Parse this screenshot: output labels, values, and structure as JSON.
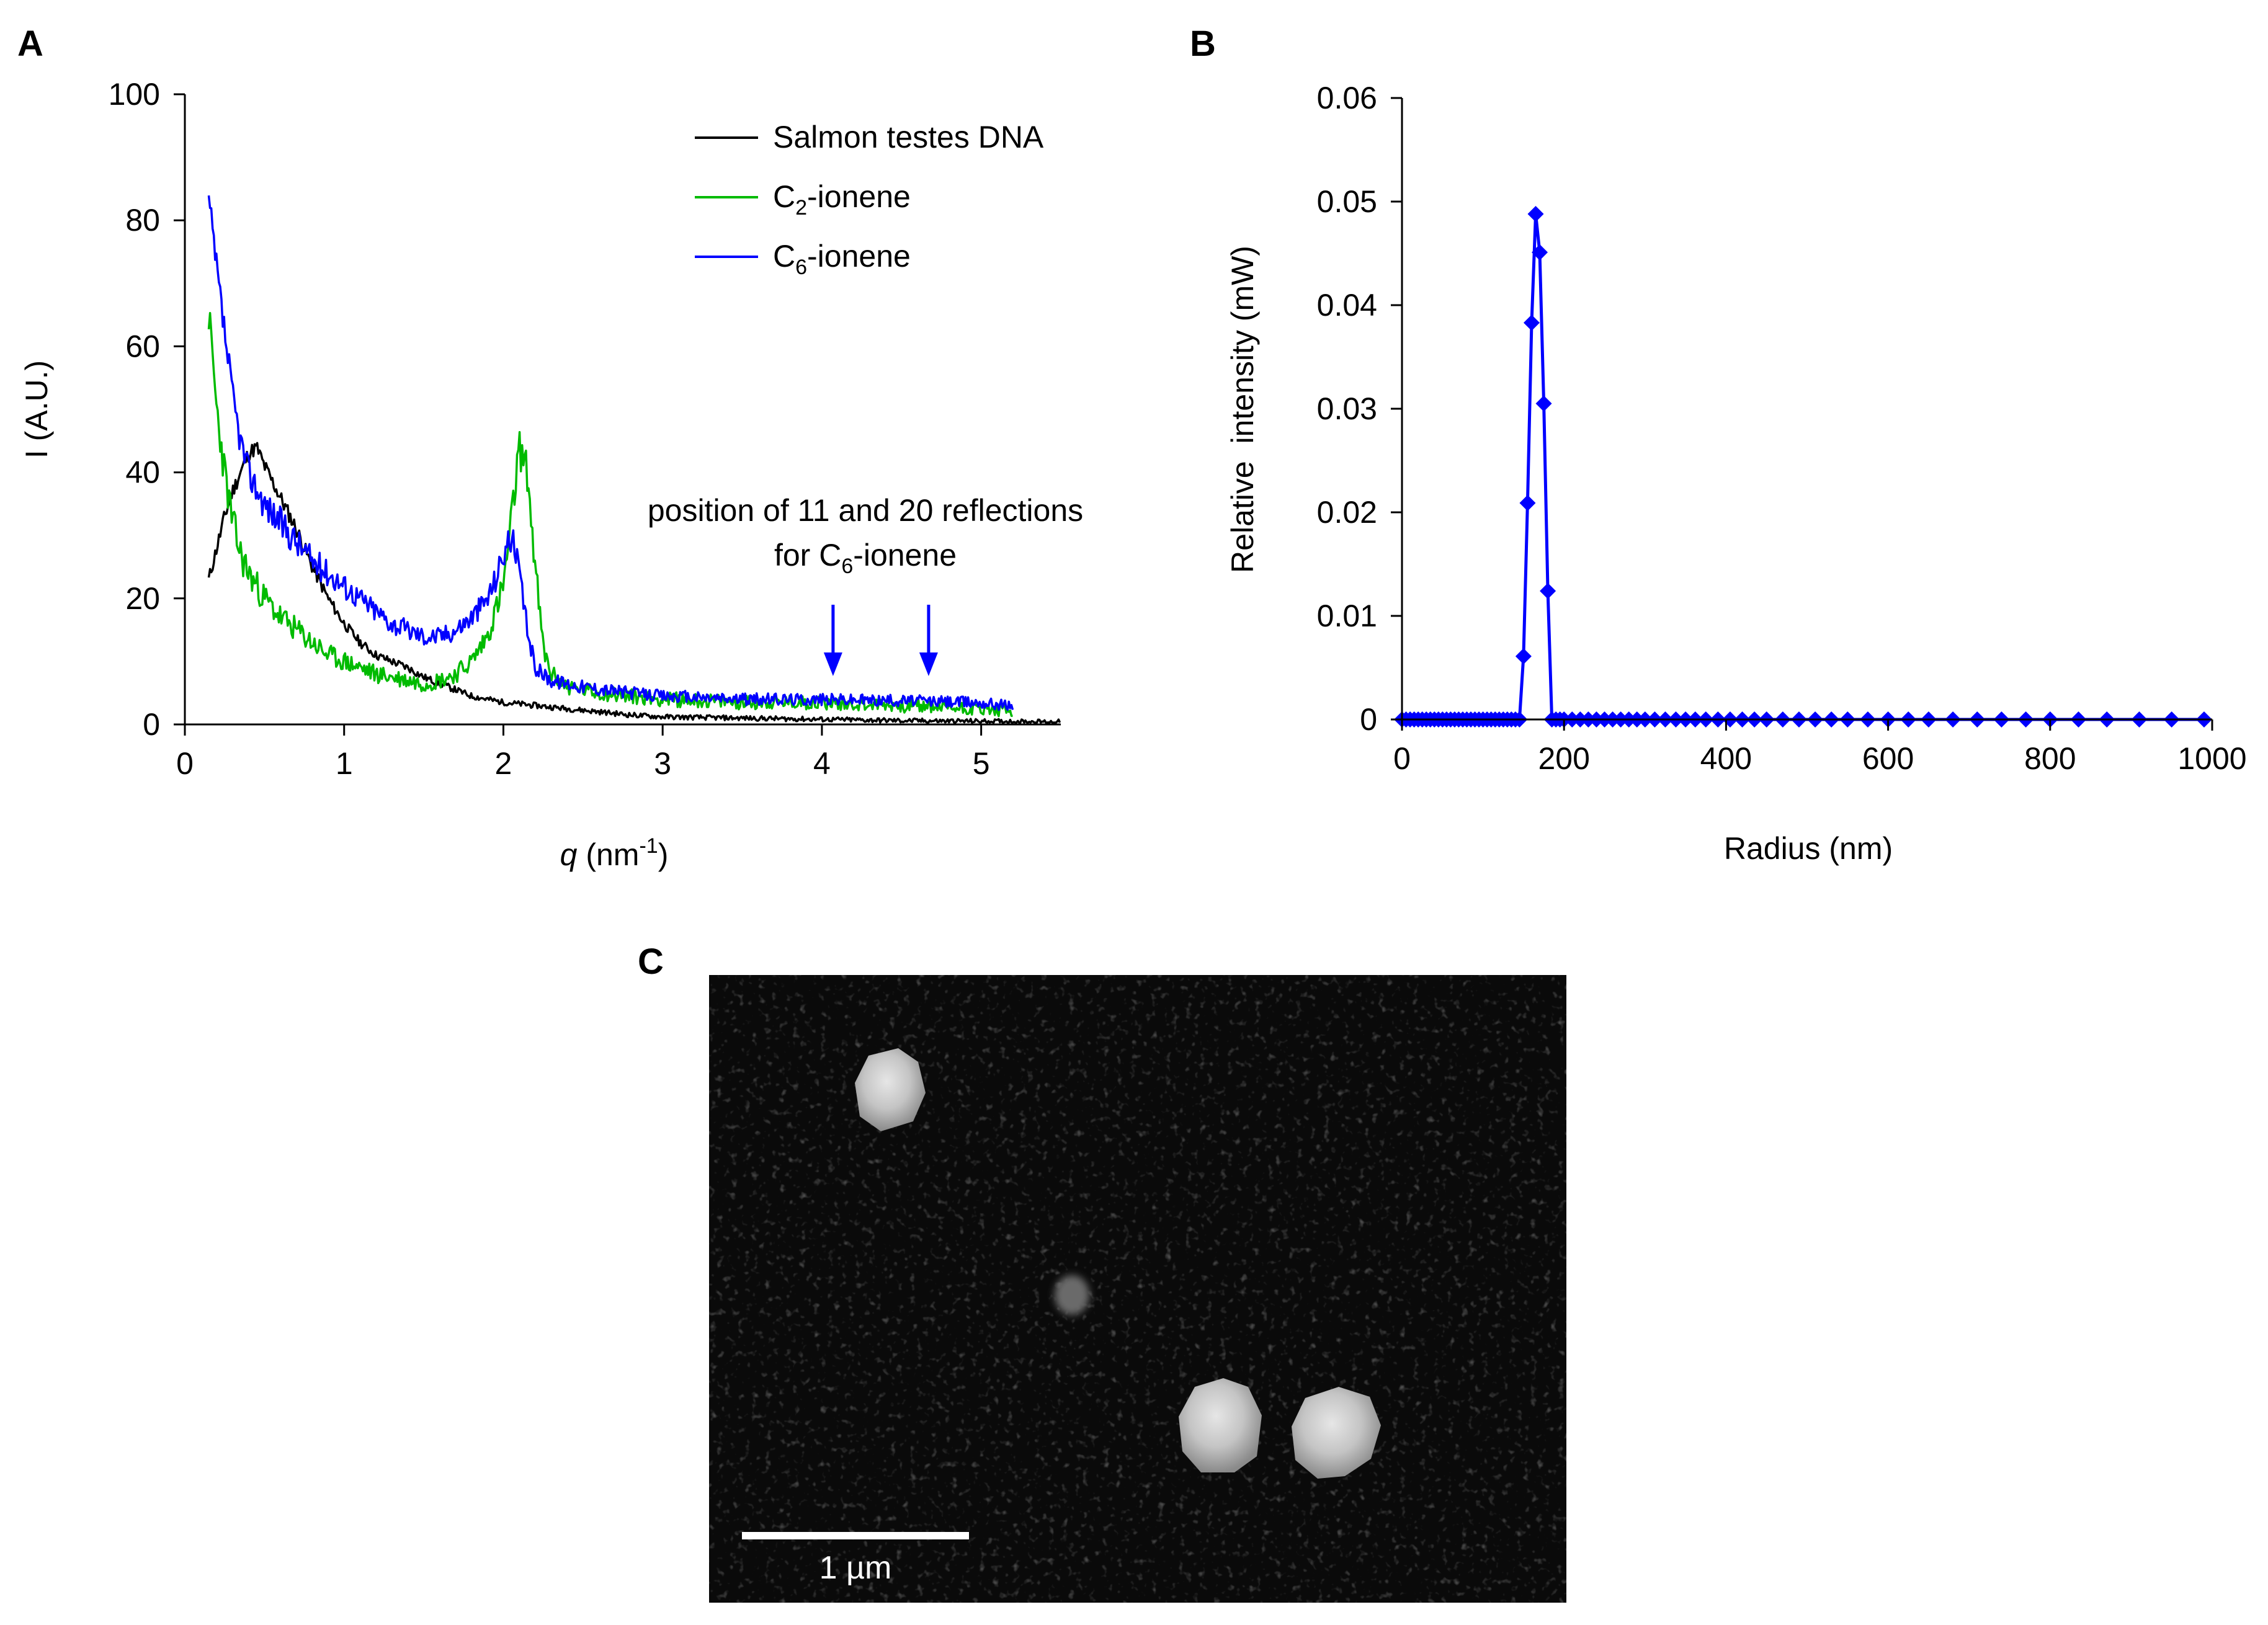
{
  "panels": {
    "A": {
      "letter": "A"
    },
    "B": {
      "letter": "B"
    },
    "C": {
      "letter": "C"
    }
  },
  "chart_data": [
    {
      "panel": "A",
      "type": "line",
      "title": "",
      "xlabel": {
        "var": "q",
        "unit_prefix": " (nm",
        "unit_sup": "-1",
        "unit_suffix": ")"
      },
      "ylabel": "I (A.U.)",
      "xlim": [
        0,
        5.5
      ],
      "ylim": [
        0,
        100
      ],
      "xticks": [
        0,
        1,
        2,
        3,
        4,
        5
      ],
      "yticks": [
        0,
        20,
        40,
        60,
        80,
        100
      ],
      "grid": false,
      "legend_position": "top-right",
      "series": [
        {
          "name": {
            "base": "Salmon testes DNA",
            "sub": "",
            "suffix": ""
          },
          "color": "#000000",
          "x": [
            0.15,
            0.2,
            0.25,
            0.3,
            0.35,
            0.4,
            0.45,
            0.5,
            0.6,
            0.7,
            0.8,
            0.9,
            1.0,
            1.1,
            1.2,
            1.3,
            1.4,
            1.5,
            1.6,
            1.7,
            1.8,
            1.9,
            2.0,
            2.2,
            2.4,
            2.6,
            2.8,
            3.0,
            3.5,
            4.0,
            4.5,
            5.0,
            5.5
          ],
          "y": [
            23,
            28,
            33,
            37,
            40,
            43,
            44,
            41,
            36,
            31,
            25,
            20,
            16,
            13,
            11,
            10,
            9,
            7.5,
            6.5,
            5.5,
            4.5,
            4,
            3.5,
            3,
            2.5,
            2,
            1.5,
            1.2,
            1,
            0.8,
            0.6,
            0.5,
            0.4
          ]
        },
        {
          "name": {
            "base": "C",
            "sub": "2",
            "suffix": "-ionene"
          },
          "color": "#00bb00",
          "x": [
            0.15,
            0.2,
            0.25,
            0.3,
            0.35,
            0.4,
            0.5,
            0.6,
            0.7,
            0.8,
            0.9,
            1.0,
            1.1,
            1.2,
            1.3,
            1.4,
            1.5,
            1.6,
            1.7,
            1.8,
            1.9,
            2.0,
            2.05,
            2.1,
            2.15,
            2.2,
            2.25,
            2.3,
            2.4,
            2.6,
            2.8,
            3.0,
            3.5,
            4.0,
            4.5,
            5.0,
            5.2
          ],
          "y": [
            65,
            50,
            40,
            32,
            27,
            24,
            20,
            17,
            15,
            13,
            11,
            10,
            9,
            8,
            7.5,
            7,
            6.5,
            7,
            8,
            10,
            14,
            22,
            32,
            44,
            40,
            25,
            12,
            8,
            6,
            5,
            4.5,
            4,
            3.5,
            3.5,
            3,
            2.5,
            2
          ]
        },
        {
          "name": {
            "base": "C",
            "sub": "6",
            "suffix": "-ionene"
          },
          "color": "#0000ff",
          "x": [
            0.15,
            0.2,
            0.25,
            0.3,
            0.35,
            0.4,
            0.5,
            0.6,
            0.7,
            0.8,
            0.9,
            1.0,
            1.1,
            1.2,
            1.3,
            1.4,
            1.5,
            1.6,
            1.7,
            1.8,
            1.9,
            1.95,
            2.0,
            2.05,
            2.1,
            2.15,
            2.2,
            2.3,
            2.5,
            2.8,
            3.0,
            3.5,
            4.0,
            4.5,
            5.0,
            5.2
          ],
          "y": [
            83,
            72,
            62,
            52,
            45,
            40,
            35,
            32,
            29,
            26,
            24,
            22,
            20,
            18,
            16,
            15,
            14,
            14,
            15,
            17,
            20,
            23,
            27,
            30,
            24,
            15,
            9,
            7,
            6,
            5,
            4.5,
            4,
            4,
            3.8,
            3.5,
            3
          ]
        }
      ],
      "annotation": {
        "line1": "position of 11 and 20 reflections",
        "line2_prefix": "for C",
        "line2_sub": "6",
        "line2_suffix": "-ionene",
        "arrows_at_q": [
          4.07,
          4.67
        ],
        "arrow_color": "#0000ff"
      }
    },
    {
      "panel": "B",
      "type": "line",
      "title": "",
      "xlabel": "Radius (nm)",
      "ylabel": "Relative  intensity (mW)",
      "xlim": [
        0,
        1000
      ],
      "ylim": [
        0,
        0.06
      ],
      "xticks": [
        0,
        200,
        400,
        600,
        800,
        1000
      ],
      "yticks": [
        0,
        0.01,
        0.02,
        0.03,
        0.04,
        0.05,
        0.06
      ],
      "ytick_labels": [
        "0",
        "0.01",
        "0.02",
        "0.03",
        "0.04",
        "0.05",
        "0.06"
      ],
      "grid": false,
      "color": "#0000ff",
      "marker": "diamond",
      "x": [
        0,
        5,
        10,
        15,
        20,
        25,
        30,
        35,
        40,
        45,
        50,
        55,
        60,
        65,
        70,
        75,
        80,
        85,
        90,
        95,
        100,
        105,
        110,
        115,
        120,
        125,
        130,
        135,
        140,
        145,
        150,
        155,
        160,
        165,
        170,
        175,
        180,
        185,
        190,
        195,
        200,
        210,
        220,
        230,
        240,
        250,
        260,
        270,
        280,
        290,
        300,
        312,
        325,
        338,
        350,
        362,
        375,
        390,
        405,
        420,
        435,
        450,
        470,
        490,
        510,
        530,
        550,
        575,
        600,
        625,
        650,
        680,
        710,
        740,
        770,
        800,
        835,
        870,
        910,
        950,
        990
      ],
      "y": [
        0,
        0,
        0,
        0,
        0,
        0,
        0,
        0,
        0,
        0,
        0,
        0,
        0,
        0,
        0,
        0,
        0,
        0,
        0,
        0,
        0,
        0,
        0,
        0,
        0,
        0,
        0,
        0,
        0,
        0,
        0.0061,
        0.0209,
        0.0383,
        0.0488,
        0.0451,
        0.0305,
        0.0124,
        0,
        0,
        0,
        0,
        0,
        0,
        0,
        0,
        0,
        0,
        0,
        0,
        0,
        0,
        0,
        0,
        0,
        0,
        0,
        0,
        0,
        0,
        0,
        0,
        0,
        0,
        0,
        0,
        0,
        0,
        0,
        0,
        0,
        0,
        0,
        0,
        0,
        0,
        0,
        0,
        0,
        0,
        0,
        0
      ]
    }
  ],
  "micrograph": {
    "scale_bar_label": "1 µm"
  }
}
